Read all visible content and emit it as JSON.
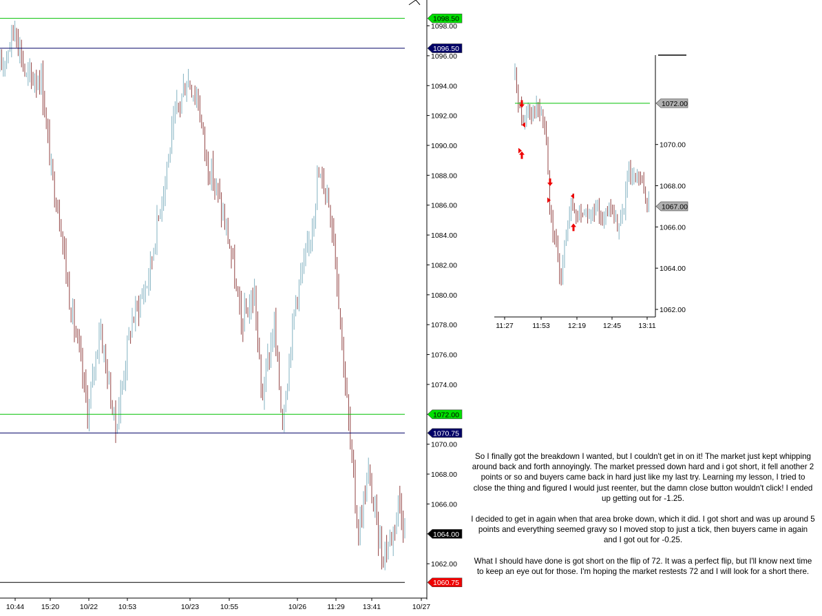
{
  "main_chart": {
    "chart_data": {
      "type": "bar",
      "style": "ohlc-bars",
      "y_ticks": [
        "1098.00",
        "1096.00",
        "1094.00",
        "1092.00",
        "1090.00",
        "1088.00",
        "1086.00",
        "1084.00",
        "1082.00",
        "1080.00",
        "1078.00",
        "1076.00",
        "1074.00",
        "1072.00",
        "1070.00",
        "1068.00",
        "1066.00",
        "1064.00",
        "1062.00"
      ],
      "x_ticks": [
        "10:44",
        "15:20",
        "10/22",
        "10:53",
        "10/23",
        "10:55",
        "10/26",
        "11:29",
        "13:41",
        "10/27"
      ],
      "ylim": [
        1060.3,
        1098.9
      ],
      "horizontal_lines": [
        {
          "price": 1098.5,
          "label": "1098.50",
          "color": "#00c000"
        },
        {
          "price": 1096.5,
          "label": "1096.50",
          "color": "#000066"
        },
        {
          "price": 1072.0,
          "label": "1072.00",
          "color": "#00c000"
        },
        {
          "price": 1070.75,
          "label": "1070.75",
          "color": "#000066"
        },
        {
          "price": 1060.75,
          "label": "1060.75",
          "color": "#000000"
        }
      ],
      "price_tags": [
        {
          "price": 1098.5,
          "label": "1098.50",
          "bg": "#00e000",
          "fg": "#000000"
        },
        {
          "price": 1096.5,
          "label": "1096.50",
          "bg": "#000066",
          "fg": "#ffffff"
        },
        {
          "price": 1072.0,
          "label": "1072.00",
          "bg": "#00e000",
          "fg": "#000000"
        },
        {
          "price": 1070.75,
          "label": "1070.75",
          "bg": "#000066",
          "fg": "#ffffff"
        },
        {
          "price": 1064.0,
          "label": "1064.00",
          "bg": "#000000",
          "fg": "#ffffff"
        },
        {
          "price": 1060.75,
          "label": "1060.75",
          "bg": "#ee0000",
          "fg": "#ffffff"
        }
      ],
      "price_path": [
        [
          0,
          1095
        ],
        [
          22,
          1098
        ],
        [
          38,
          1094.5
        ],
        [
          60,
          1094.5
        ],
        [
          75,
          1088
        ],
        [
          88,
          1085
        ],
        [
          100,
          1080
        ],
        [
          115,
          1076
        ],
        [
          128,
          1072
        ],
        [
          145,
          1078
        ],
        [
          158,
          1074
        ],
        [
          168,
          1071
        ],
        [
          190,
          1078
        ],
        [
          215,
          1081
        ],
        [
          240,
          1088
        ],
        [
          255,
          1092
        ],
        [
          272,
          1094.5
        ],
        [
          288,
          1093
        ],
        [
          300,
          1089
        ],
        [
          315,
          1087
        ],
        [
          335,
          1083
        ],
        [
          350,
          1078
        ],
        [
          370,
          1080
        ],
        [
          380,
          1073
        ],
        [
          398,
          1078
        ],
        [
          410,
          1071.5
        ],
        [
          430,
          1080
        ],
        [
          448,
          1083
        ],
        [
          462,
          1088
        ],
        [
          475,
          1087
        ],
        [
          485,
          1084
        ],
        [
          500,
          1075
        ],
        [
          508,
          1070.5
        ],
        [
          520,
          1064
        ],
        [
          535,
          1068
        ],
        [
          555,
          1062.5
        ],
        [
          570,
          1064
        ],
        [
          580,
          1066.5
        ],
        [
          588,
          1064
        ]
      ],
      "up_color": "#80b0c0",
      "down_color": "#904040"
    }
  },
  "inset_chart": {
    "chart_data": {
      "type": "bar",
      "style": "ohlc-bars",
      "y_ticks": [
        "1070.00",
        "1068.00",
        "1066.00",
        "1064.00",
        "1062.00"
      ],
      "x_ticks": [
        "11:27",
        "11:53",
        "12:19",
        "12:45",
        "13:11"
      ],
      "ylim": [
        1061.7,
        1073.6
      ],
      "horizontal_lines": [
        {
          "price": 1072.0,
          "label": "1072.00",
          "color": "#00c000"
        }
      ],
      "price_tags": [
        {
          "price": 1072.0,
          "label": "1072.00",
          "bg": "#b0b0b0",
          "fg": "#000000"
        },
        {
          "price": 1067.0,
          "label": "1067.00",
          "bg": "#b0b0b0",
          "fg": "#000000"
        }
      ],
      "price_path": [
        [
          0,
          1073.2
        ],
        [
          4,
          1072.5
        ],
        [
          8,
          1071.5
        ],
        [
          12,
          1071
        ],
        [
          18,
          1071.8
        ],
        [
          26,
          1071.6
        ],
        [
          34,
          1071.7
        ],
        [
          42,
          1071
        ],
        [
          46,
          1070
        ],
        [
          50,
          1067
        ],
        [
          56,
          1065.5
        ],
        [
          62,
          1064.5
        ],
        [
          66,
          1063
        ],
        [
          70,
          1065
        ],
        [
          76,
          1066
        ],
        [
          82,
          1067
        ],
        [
          90,
          1066.5
        ],
        [
          100,
          1066.8
        ],
        [
          110,
          1066.5
        ],
        [
          120,
          1066.8
        ],
        [
          130,
          1066.5
        ],
        [
          140,
          1066.8
        ],
        [
          150,
          1066
        ],
        [
          158,
          1066.8
        ],
        [
          164,
          1068.5
        ],
        [
          172,
          1068.2
        ],
        [
          180,
          1068.3
        ],
        [
          190,
          1067.5
        ],
        [
          196,
          1067
        ]
      ],
      "trade_markers": [
        {
          "x": 10,
          "price": 1071.85,
          "kind": "arrow-down"
        },
        {
          "x": 13,
          "price": 1070.95,
          "kind": "flag-left"
        },
        {
          "x": 7,
          "price": 1069.7,
          "kind": "flag-right"
        },
        {
          "x": 10,
          "price": 1069.6,
          "kind": "arrow-up"
        },
        {
          "x": 51,
          "price": 1068.05,
          "kind": "arrow-down"
        },
        {
          "x": 49,
          "price": 1067.3,
          "kind": "flag-right"
        },
        {
          "x": 84,
          "price": 1067.5,
          "kind": "flag-left"
        },
        {
          "x": 85,
          "price": 1066.1,
          "kind": "arrow-up"
        }
      ],
      "up_color": "#80b0c0",
      "down_color": "#904040"
    }
  },
  "commentary": {
    "paragraph_1": "So I finally got the breakdown I wanted, but I couldn't get in on it! The market just kept whipping around back and forth annoyingly. The market pressed down hard and i got short, it fell another 2 points or so and buyers came back in hard just like my last try. Learning my lesson, I tried to close the thing and figured I would just reenter, but the damn close button wouldn't click! I ended up getting out for -1.25.",
    "paragraph_2": "I decided to get in again when that area broke down, which it did. I got short and was up around 5 points and everything seemed gravy so I moved stop to just a tick, then buyers came in again and I got out for -0.25.",
    "paragraph_3": "What I should have done is got short on the flip of 72. It was a perfect flip, but I'll know next time to keep an eye out for those. I'm hoping the market restests 72 and I will look for a short there."
  }
}
